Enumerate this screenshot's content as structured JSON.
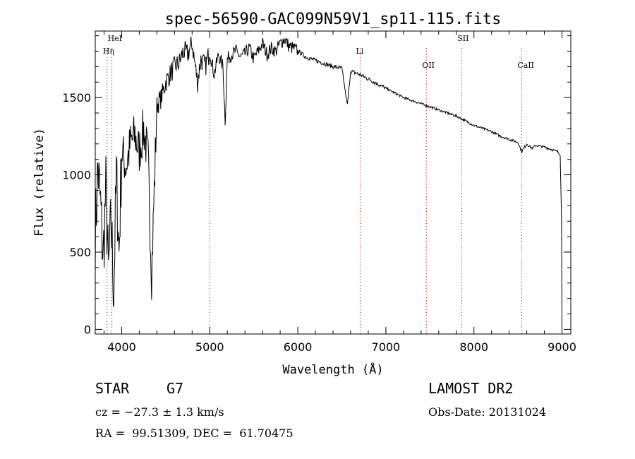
{
  "chart_data": {
    "type": "line",
    "title": "spec-56590-GAC099N59V1_sp11-115.fits",
    "xlabel": "Wavelength (Å)",
    "ylabel": "Flux (relative)",
    "xlim": [
      3700,
      9100
    ],
    "ylim": [
      -30,
      1930
    ],
    "xticks": [
      4000,
      5000,
      6000,
      7000,
      8000,
      9000
    ],
    "yticks": [
      0,
      500,
      1000,
      1500
    ],
    "grid": false,
    "series": [
      {
        "x": [
          3700,
          3730,
          3760,
          3790,
          3820,
          3850,
          3880,
          3910,
          3940,
          3970,
          4000,
          4050,
          4100,
          4150,
          4200,
          4250,
          4300,
          4340,
          4400,
          4450,
          4500,
          4550,
          4600,
          4650,
          4700,
          4750,
          4800,
          4861,
          4900,
          4950,
          5000,
          5050,
          5100,
          5150,
          5175,
          5200,
          5250,
          5300,
          5350,
          5400,
          5450,
          5500,
          5550,
          5600,
          5650,
          5700,
          5750,
          5800,
          5850,
          5900,
          5950,
          6000,
          6100,
          6200,
          6300,
          6400,
          6500,
          6563,
          6600,
          6700,
          6800,
          6900,
          7000,
          7100,
          7200,
          7300,
          7400,
          7500,
          7600,
          7700,
          7800,
          7900,
          8000,
          8100,
          8200,
          8300,
          8400,
          8500,
          8542,
          8600,
          8662,
          8700,
          8800,
          8900,
          8950,
          8980,
          8995,
          9000
        ],
        "y": [
          600,
          1050,
          800,
          450,
          900,
          350,
          700,
          250,
          1000,
          500,
          1150,
          1050,
          1200,
          1250,
          1150,
          1300,
          1100,
          350,
          1450,
          1500,
          1600,
          1650,
          1700,
          1720,
          1800,
          1780,
          1850,
          1600,
          1750,
          1700,
          1800,
          1650,
          1780,
          1700,
          1350,
          1750,
          1780,
          1800,
          1760,
          1780,
          1820,
          1750,
          1800,
          1850,
          1780,
          1820,
          1800,
          1850,
          1880,
          1830,
          1820,
          1800,
          1760,
          1740,
          1720,
          1700,
          1690,
          1450,
          1670,
          1650,
          1620,
          1590,
          1560,
          1530,
          1500,
          1480,
          1460,
          1440,
          1420,
          1400,
          1380,
          1350,
          1320,
          1300,
          1280,
          1250,
          1230,
          1210,
          1150,
          1200,
          1170,
          1190,
          1180,
          1160,
          1150,
          1130,
          700,
          0
        ]
      }
    ],
    "lines": [
      {
        "x": 3835,
        "label": "Hη"
      },
      {
        "x": 3889,
        "label": "HeI"
      },
      {
        "x": 5000,
        "label": ""
      },
      {
        "x": 6708,
        "label": "Li"
      },
      {
        "x": 7460,
        "label": "OII"
      },
      {
        "x": 7860,
        "label": "SII"
      },
      {
        "x": 8542,
        "label": "CaII"
      }
    ]
  },
  "info": {
    "obj_type": "STAR",
    "obj_class": "G7",
    "survey": "LAMOST DR2",
    "cz": "cz = −27.3 ± 1.3 km/s",
    "obs_date": "Obs-Date: 20131024",
    "coords": "RA =  99.51309, DEC =  61.70475"
  }
}
